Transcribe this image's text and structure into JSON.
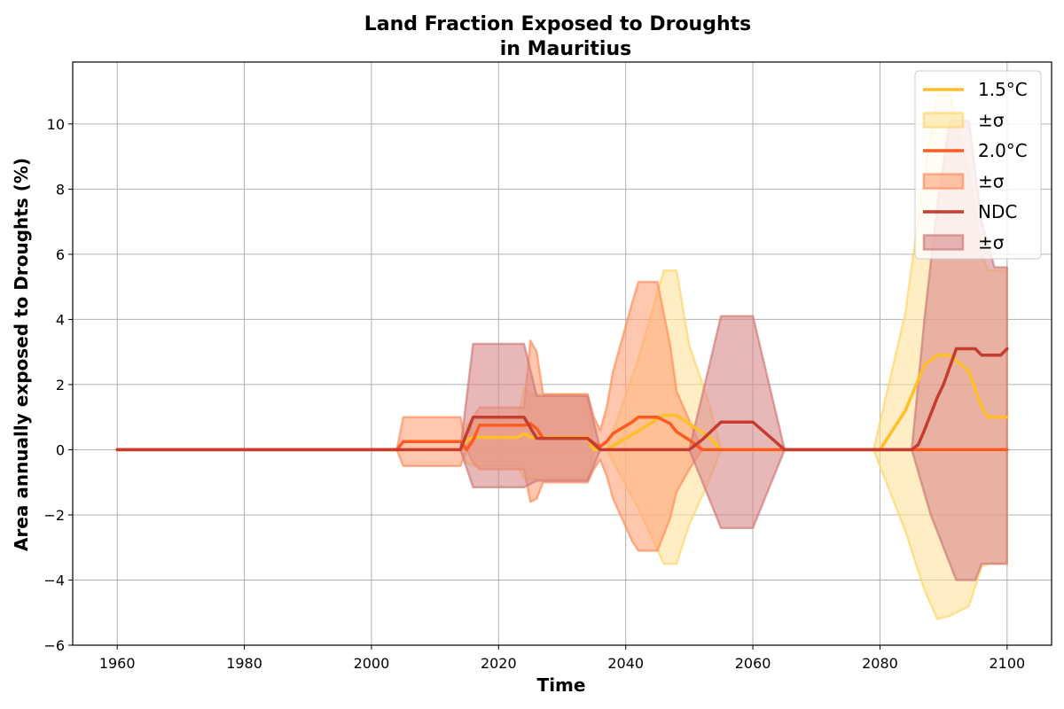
{
  "chart_data": {
    "type": "line",
    "title": "Land Fraction Exposed to Droughts",
    "subtitle": "in Mauritius",
    "xlabel": "Time",
    "ylabel": "Area annually exposed to Droughts (%)",
    "xlim": [
      1953,
      2107
    ],
    "ylim": [
      -6,
      11.9
    ],
    "xticks": [
      1960,
      1980,
      2000,
      2020,
      2040,
      2060,
      2080,
      2100
    ],
    "yticks": [
      -6,
      -4,
      -2,
      0,
      2,
      4,
      6,
      8,
      10
    ],
    "grid": true,
    "legend_position": "top-right",
    "legend": [
      {
        "label": "1.5°C",
        "kind": "line",
        "series": 0
      },
      {
        "label": "±σ",
        "kind": "band",
        "series": 0
      },
      {
        "label": "2.0°C",
        "kind": "line",
        "series": 1
      },
      {
        "label": "±σ",
        "kind": "band",
        "series": 1
      },
      {
        "label": "NDC",
        "kind": "line",
        "series": 2
      },
      {
        "label": "±σ",
        "kind": "band",
        "series": 2
      }
    ],
    "series": [
      {
        "name": "1.5°C",
        "color": "#ffbf27",
        "band_fill": "#ffe39b",
        "band_edge": "#ffd56e",
        "points": [
          [
            1960,
            0
          ],
          [
            2004,
            0
          ],
          [
            2014,
            0
          ],
          [
            2015,
            0.3
          ],
          [
            2016,
            0.38
          ],
          [
            2023,
            0.38
          ],
          [
            2024,
            0.5
          ],
          [
            2025,
            0.38
          ],
          [
            2034,
            0.38
          ],
          [
            2035,
            0
          ],
          [
            2037,
            0
          ],
          [
            2040,
            0.35
          ],
          [
            2043,
            0.7
          ],
          [
            2045,
            0.95
          ],
          [
            2046,
            1.05
          ],
          [
            2048,
            1.05
          ],
          [
            2050,
            0.8
          ],
          [
            2053,
            0.4
          ],
          [
            2055,
            0
          ],
          [
            2056,
            0
          ],
          [
            2080,
            0
          ],
          [
            2084,
            1.2
          ],
          [
            2087,
            2.6
          ],
          [
            2089,
            2.9
          ],
          [
            2091,
            2.9
          ],
          [
            2094,
            2.4
          ],
          [
            2096,
            1.3
          ],
          [
            2097,
            1.0
          ],
          [
            2100,
            1.0
          ]
        ],
        "band_upper": [
          [
            1960,
            0
          ],
          [
            2004,
            0
          ],
          [
            2014,
            0
          ],
          [
            2015,
            0.8
          ],
          [
            2016,
            0.9
          ],
          [
            2023,
            0.9
          ],
          [
            2024,
            1.9
          ],
          [
            2025,
            1.7
          ],
          [
            2034,
            1.7
          ],
          [
            2035,
            0
          ],
          [
            2037,
            0
          ],
          [
            2042,
            2.8
          ],
          [
            2046,
            5.5
          ],
          [
            2048,
            5.5
          ],
          [
            2050,
            3.2
          ],
          [
            2053,
            1.5
          ],
          [
            2055,
            0
          ],
          [
            2056,
            0
          ],
          [
            2079,
            0
          ],
          [
            2084,
            4.2
          ],
          [
            2087,
            8.5
          ],
          [
            2089,
            10.9
          ],
          [
            2091,
            10.9
          ],
          [
            2094,
            8.5
          ],
          [
            2096,
            6.0
          ],
          [
            2097,
            5.5
          ],
          [
            2100,
            5.5
          ]
        ],
        "band_lower": [
          [
            1960,
            0
          ],
          [
            2004,
            0
          ],
          [
            2014,
            0
          ],
          [
            2015,
            -0.4
          ],
          [
            2016,
            -0.5
          ],
          [
            2023,
            -0.5
          ],
          [
            2024,
            -0.9
          ],
          [
            2025,
            -0.9
          ],
          [
            2034,
            -0.9
          ],
          [
            2035,
            0
          ],
          [
            2037,
            0
          ],
          [
            2042,
            -1.8
          ],
          [
            2046,
            -3.5
          ],
          [
            2048,
            -3.5
          ],
          [
            2050,
            -2.3
          ],
          [
            2053,
            -1.0
          ],
          [
            2055,
            0
          ],
          [
            2056,
            0
          ],
          [
            2079,
            0
          ],
          [
            2084,
            -2.5
          ],
          [
            2087,
            -4.3
          ],
          [
            2089,
            -5.2
          ],
          [
            2091,
            -5.1
          ],
          [
            2094,
            -4.8
          ],
          [
            2096,
            -3.6
          ],
          [
            2097,
            -3.5
          ],
          [
            2100,
            -3.5
          ]
        ]
      },
      {
        "name": "2.0°C",
        "color": "#ff5a1f",
        "band_fill": "#ffa277",
        "band_edge": "#ff8f5f",
        "points": [
          [
            1960,
            0
          ],
          [
            2004,
            0
          ],
          [
            2005,
            0.25
          ],
          [
            2014,
            0.25
          ],
          [
            2015,
            0
          ],
          [
            2016,
            0.3
          ],
          [
            2017,
            0.75
          ],
          [
            2024,
            0.75
          ],
          [
            2025,
            0.8
          ],
          [
            2026,
            0.65
          ],
          [
            2027,
            0.35
          ],
          [
            2034,
            0.35
          ],
          [
            2035,
            0.2
          ],
          [
            2036,
            0.1
          ],
          [
            2037,
            0.25
          ],
          [
            2038,
            0.5
          ],
          [
            2041,
            0.85
          ],
          [
            2042,
            1.0
          ],
          [
            2045,
            1.0
          ],
          [
            2047,
            0.8
          ],
          [
            2048,
            0.55
          ],
          [
            2050,
            0.3
          ],
          [
            2052,
            0
          ],
          [
            2100,
            0
          ]
        ],
        "band_upper": [
          [
            1960,
            0
          ],
          [
            2004,
            0
          ],
          [
            2005,
            1.0
          ],
          [
            2014,
            1.0
          ],
          [
            2015,
            0
          ],
          [
            2016,
            1.0
          ],
          [
            2017,
            1.3
          ],
          [
            2024,
            1.3
          ],
          [
            2025,
            3.35
          ],
          [
            2026,
            3.0
          ],
          [
            2027,
            1.7
          ],
          [
            2034,
            1.7
          ],
          [
            2035,
            1.0
          ],
          [
            2036,
            0.6
          ],
          [
            2037,
            1.3
          ],
          [
            2038,
            2.4
          ],
          [
            2041,
            4.5
          ],
          [
            2042,
            5.15
          ],
          [
            2045,
            5.15
          ],
          [
            2047,
            3.2
          ],
          [
            2048,
            1.8
          ],
          [
            2050,
            0.9
          ],
          [
            2052,
            0
          ],
          [
            2100,
            0
          ]
        ],
        "band_lower": [
          [
            1960,
            0
          ],
          [
            2004,
            0
          ],
          [
            2005,
            -0.5
          ],
          [
            2014,
            -0.5
          ],
          [
            2015,
            0
          ],
          [
            2016,
            -0.4
          ],
          [
            2017,
            -0.6
          ],
          [
            2024,
            -0.6
          ],
          [
            2025,
            -1.6
          ],
          [
            2026,
            -1.5
          ],
          [
            2027,
            -1.0
          ],
          [
            2034,
            -1.0
          ],
          [
            2035,
            -0.6
          ],
          [
            2036,
            -0.3
          ],
          [
            2037,
            -0.8
          ],
          [
            2038,
            -1.5
          ],
          [
            2041,
            -2.8
          ],
          [
            2042,
            -3.1
          ],
          [
            2045,
            -3.1
          ],
          [
            2047,
            -2.1
          ],
          [
            2048,
            -1.3
          ],
          [
            2050,
            -0.6
          ],
          [
            2052,
            0
          ],
          [
            2100,
            0
          ]
        ]
      },
      {
        "name": "NDC",
        "color": "#c63d2f",
        "band_fill": "#d9898a",
        "band_edge": "#cf7c7a",
        "points": [
          [
            1960,
            0
          ],
          [
            2014,
            0
          ],
          [
            2016,
            1.0
          ],
          [
            2024,
            1.0
          ],
          [
            2026,
            0.35
          ],
          [
            2034,
            0.35
          ],
          [
            2036,
            0
          ],
          [
            2050,
            0
          ],
          [
            2052,
            0.3
          ],
          [
            2055,
            0.85
          ],
          [
            2060,
            0.85
          ],
          [
            2065,
            0
          ],
          [
            2085,
            0
          ],
          [
            2086,
            0.15
          ],
          [
            2087,
            0.6
          ],
          [
            2089,
            1.6
          ],
          [
            2090,
            2.0
          ],
          [
            2092,
            3.1
          ],
          [
            2095,
            3.1
          ],
          [
            2096,
            2.9
          ],
          [
            2099,
            2.9
          ],
          [
            2100,
            3.1
          ]
        ],
        "band_upper": [
          [
            1960,
            0
          ],
          [
            2014,
            0
          ],
          [
            2016,
            3.25
          ],
          [
            2024,
            3.25
          ],
          [
            2026,
            1.65
          ],
          [
            2034,
            1.65
          ],
          [
            2036,
            0
          ],
          [
            2050,
            0
          ],
          [
            2055,
            4.1
          ],
          [
            2060,
            4.1
          ],
          [
            2065,
            0
          ],
          [
            2085,
            0
          ],
          [
            2087,
            4.0
          ],
          [
            2089,
            7.5
          ],
          [
            2091,
            10.1
          ],
          [
            2094,
            10.1
          ],
          [
            2096,
            7.0
          ],
          [
            2098,
            5.6
          ],
          [
            2100,
            5.6
          ]
        ],
        "band_lower": [
          [
            1960,
            0
          ],
          [
            2014,
            0
          ],
          [
            2016,
            -1.15
          ],
          [
            2024,
            -1.15
          ],
          [
            2026,
            -0.95
          ],
          [
            2034,
            -0.95
          ],
          [
            2036,
            0
          ],
          [
            2050,
            0
          ],
          [
            2055,
            -2.4
          ],
          [
            2060,
            -2.4
          ],
          [
            2065,
            0
          ],
          [
            2085,
            0
          ],
          [
            2088,
            -2.0
          ],
          [
            2090,
            -3.0
          ],
          [
            2092,
            -4.0
          ],
          [
            2095,
            -4.0
          ],
          [
            2096,
            -3.5
          ],
          [
            2100,
            -3.5
          ]
        ]
      }
    ]
  }
}
